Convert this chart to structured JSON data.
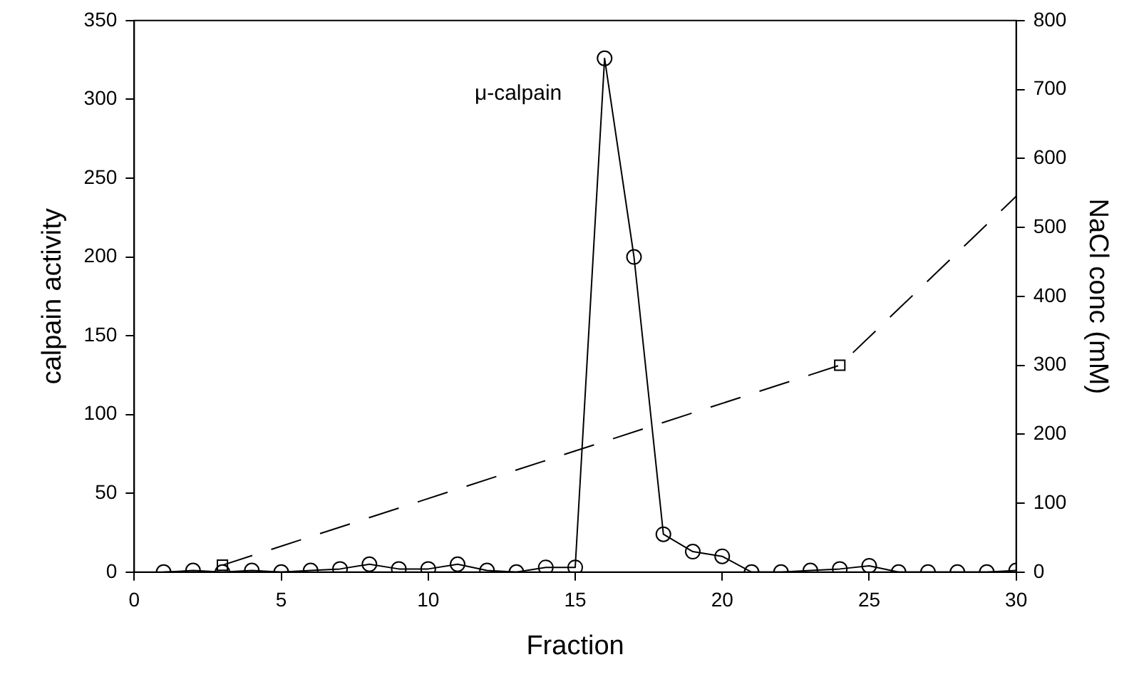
{
  "chart_data": {
    "type": "line",
    "xlabel": "Fraction",
    "ylabel": "calpain activity",
    "y2label": "NaCl conc (mM)",
    "xlim": [
      0,
      30
    ],
    "xticks": [
      0,
      5,
      10,
      15,
      20,
      25,
      30
    ],
    "ylim": [
      0,
      350
    ],
    "yticks": [
      0,
      50,
      100,
      150,
      200,
      250,
      300,
      350
    ],
    "y2lim": [
      0,
      800
    ],
    "y2ticks": [
      0,
      100,
      200,
      300,
      400,
      500,
      600,
      700,
      800
    ],
    "grid": false,
    "legend": false,
    "annotations": [
      {
        "text": "μ-calpain",
        "x": 16,
        "y": 326
      }
    ],
    "series": [
      {
        "type": "line",
        "color": "#000000",
        "marker": "circle",
        "line_style": "solid",
        "x": [
          1,
          2,
          3,
          4,
          5,
          6,
          7,
          8,
          9,
          10,
          11,
          12,
          13,
          14,
          15,
          16,
          17,
          18,
          19,
          20,
          21,
          22,
          23,
          24,
          25,
          26,
          27,
          28,
          29,
          30
        ],
        "values": [
          0,
          1,
          0,
          1,
          0,
          1,
          2,
          5,
          2,
          2,
          5,
          1,
          0,
          3,
          3,
          326,
          200,
          24,
          13,
          10,
          0,
          0,
          1,
          2,
          4,
          0,
          0,
          0,
          0,
          1
        ]
      },
      {
        "type": "line",
        "color": "#000000",
        "marker": "none",
        "line_style": "dashed",
        "axis": "y2",
        "x": [
          3,
          24,
          30
        ],
        "values": [
          10,
          300,
          545
        ]
      },
      {
        "type": "scatter",
        "color": "#000000",
        "marker": "square",
        "axis": "y2",
        "x": [
          3,
          24
        ],
        "values": [
          10,
          300
        ]
      }
    ]
  }
}
